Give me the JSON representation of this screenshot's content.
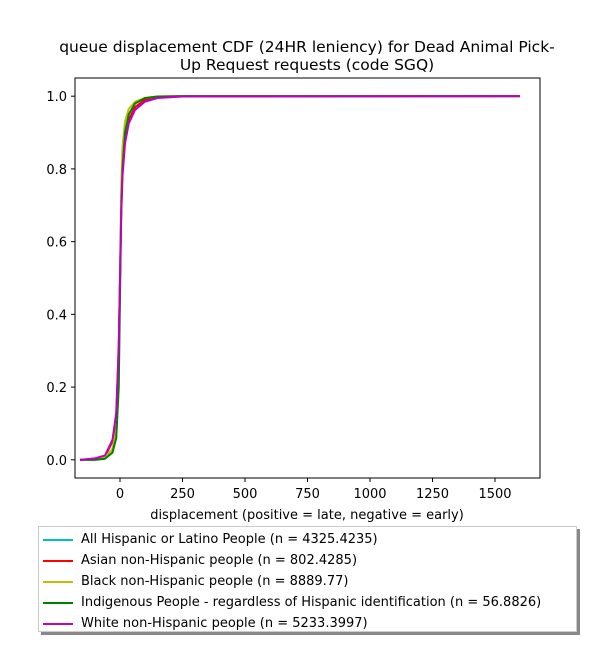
{
  "chart_data": {
    "type": "line",
    "title": "queue displacement CDF (24HR leniency) for Dead Animal Pick-Up Request  requests (code SGQ)",
    "title_lines": [
      "queue displacement CDF (24HR leniency) for Dead Animal Pick-",
      "Up Request  requests (code SGQ)"
    ],
    "xlabel": "displacement (positive = late, negative = early)",
    "ylabel": "",
    "xlim": [
      -180,
      1680
    ],
    "ylim": [
      -0.05,
      1.05
    ],
    "xticks": [
      0,
      250,
      500,
      750,
      1000,
      1250,
      1500
    ],
    "yticks": [
      0.0,
      0.2,
      0.4,
      0.6,
      0.8,
      1.0
    ],
    "xtick_labels": [
      "0",
      "250",
      "500",
      "750",
      "1000",
      "1250",
      "1500"
    ],
    "ytick_labels": [
      "0.0",
      "0.2",
      "0.4",
      "0.6",
      "0.8",
      "1.0"
    ],
    "legend_position": "below",
    "series": [
      {
        "name": "All Hispanic or Latino People (n = 4325.4235)",
        "color": "#00bfbf",
        "points": [
          [
            -160,
            0.0
          ],
          [
            -100,
            0.003
          ],
          [
            -60,
            0.01
          ],
          [
            -30,
            0.05
          ],
          [
            -15,
            0.12
          ],
          [
            -5,
            0.3
          ],
          [
            0,
            0.5
          ],
          [
            5,
            0.7
          ],
          [
            10,
            0.8
          ],
          [
            20,
            0.88
          ],
          [
            35,
            0.935
          ],
          [
            60,
            0.97
          ],
          [
            100,
            0.99
          ],
          [
            150,
            0.997
          ],
          [
            250,
            1.0
          ],
          [
            1600,
            1.0
          ]
        ]
      },
      {
        "name": "Asian non-Hispanic people (n = 802.4285)",
        "color": "#ff0000",
        "points": [
          [
            -160,
            0.0
          ],
          [
            -100,
            0.003
          ],
          [
            -60,
            0.01
          ],
          [
            -30,
            0.05
          ],
          [
            -15,
            0.12
          ],
          [
            -5,
            0.3
          ],
          [
            0,
            0.5
          ],
          [
            5,
            0.7
          ],
          [
            10,
            0.8
          ],
          [
            20,
            0.88
          ],
          [
            35,
            0.935
          ],
          [
            60,
            0.97
          ],
          [
            100,
            0.99
          ],
          [
            150,
            0.997
          ],
          [
            250,
            1.0
          ],
          [
            1600,
            1.0
          ]
        ]
      },
      {
        "name": "Black non-Hispanic people (n = 8889.77)",
        "color": "#bfbf00",
        "points": [
          [
            -160,
            0.0
          ],
          [
            -100,
            0.002
          ],
          [
            -60,
            0.007
          ],
          [
            -30,
            0.03
          ],
          [
            -15,
            0.08
          ],
          [
            -5,
            0.25
          ],
          [
            0,
            0.5
          ],
          [
            5,
            0.75
          ],
          [
            10,
            0.86
          ],
          [
            20,
            0.93
          ],
          [
            35,
            0.965
          ],
          [
            60,
            0.985
          ],
          [
            100,
            0.995
          ],
          [
            150,
            0.999
          ],
          [
            250,
            1.0
          ],
          [
            1600,
            1.0
          ]
        ]
      },
      {
        "name": "Indigenous People - regardless of Hispanic identification (n = 56.8826)",
        "color": "#008000",
        "points": [
          [
            -160,
            0.0
          ],
          [
            -100,
            0.0
          ],
          [
            -60,
            0.003
          ],
          [
            -30,
            0.02
          ],
          [
            -15,
            0.06
          ],
          [
            -5,
            0.2
          ],
          [
            0,
            0.45
          ],
          [
            5,
            0.68
          ],
          [
            10,
            0.8
          ],
          [
            20,
            0.9
          ],
          [
            35,
            0.95
          ],
          [
            60,
            0.98
          ],
          [
            100,
            0.995
          ],
          [
            150,
            0.999
          ],
          [
            250,
            1.0
          ],
          [
            1600,
            1.0
          ]
        ]
      },
      {
        "name": "White non-Hispanic people (n = 5233.3997)",
        "color": "#bf00bf",
        "points": [
          [
            -160,
            0.0
          ],
          [
            -100,
            0.004
          ],
          [
            -60,
            0.012
          ],
          [
            -30,
            0.055
          ],
          [
            -15,
            0.13
          ],
          [
            -5,
            0.32
          ],
          [
            0,
            0.5
          ],
          [
            5,
            0.68
          ],
          [
            10,
            0.78
          ],
          [
            20,
            0.87
          ],
          [
            35,
            0.925
          ],
          [
            60,
            0.962
          ],
          [
            100,
            0.985
          ],
          [
            150,
            0.995
          ],
          [
            250,
            0.999
          ],
          [
            1600,
            1.0
          ]
        ]
      }
    ]
  }
}
